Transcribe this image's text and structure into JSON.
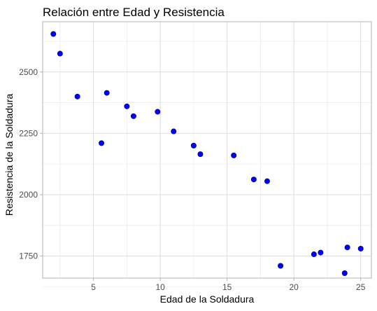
{
  "chart_data": {
    "type": "scatter",
    "title": "Relación entre Edad y Resistencia",
    "xlabel": "Edad de la Soldadura",
    "ylabel": "Resistencia de la Soldadura",
    "xlim": [
      1.2,
      25.8
    ],
    "ylim": [
      1660,
      2705
    ],
    "xticks": [
      5,
      10,
      15,
      20,
      25
    ],
    "yticks": [
      1750,
      2000,
      2250,
      2500
    ],
    "xtick_labels": [
      "5",
      "10",
      "15",
      "20",
      "25"
    ],
    "ytick_labels": [
      "1750",
      "2000",
      "2250",
      "2500"
    ],
    "grid": true,
    "point_color": "#0000ff",
    "panel_border_color": "#b3b3b3",
    "grid_color": "#dedede",
    "minor_grid_color": "#ececec",
    "series": [
      {
        "x": [
          2.0,
          2.5,
          3.8,
          5.6,
          6.0,
          7.5,
          8.0,
          9.8,
          11.0,
          12.5,
          13.0,
          15.5,
          17.0,
          18.0,
          19.0,
          21.5,
          22.0,
          23.8,
          24.0,
          25.0
        ],
        "y": [
          2655,
          2575,
          2400,
          2210,
          2415,
          2360,
          2320,
          2338,
          2258,
          2200,
          2165,
          2160,
          2062,
          2055,
          1710,
          1757,
          1764,
          1680,
          1785,
          1780
        ]
      }
    ]
  }
}
